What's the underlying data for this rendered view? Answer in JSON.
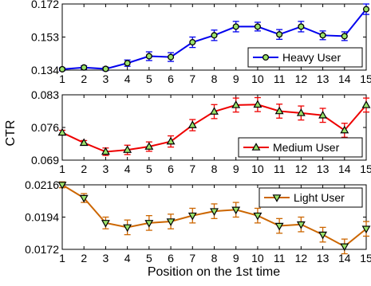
{
  "figure": {
    "ylabel": "CTR",
    "xlabel": "Position on the 1st time"
  },
  "chart_data": [
    {
      "type": "line",
      "x": [
        1,
        2,
        3,
        4,
        5,
        6,
        7,
        8,
        9,
        10,
        11,
        12,
        13,
        14,
        15
      ],
      "xlim": [
        1,
        15
      ],
      "ylim": [
        0.134,
        0.172
      ],
      "yticks": [
        0.134,
        0.153,
        0.172
      ],
      "ytick_labels": [
        "0.134",
        "0.153",
        "0.172"
      ],
      "xtick_labels": [
        "1",
        "2",
        "3",
        "4",
        "5",
        "6",
        "7",
        "8",
        "9",
        "10",
        "11",
        "12",
        "13",
        "14",
        "15"
      ],
      "legend_position": "bottom-right",
      "series": [
        {
          "name": "Heavy User",
          "color": "#0000ee",
          "marker": "circle",
          "marker_fill": "#9be36b",
          "values": [
            0.1345,
            0.1355,
            0.1347,
            0.138,
            0.142,
            0.1415,
            0.15,
            0.154,
            0.159,
            0.159,
            0.1545,
            0.159,
            0.154,
            0.1535,
            0.169
          ],
          "errors": [
            0.0008,
            0.001,
            0.001,
            0.0018,
            0.0025,
            0.0025,
            0.003,
            0.003,
            0.003,
            0.0025,
            0.0028,
            0.003,
            0.0025,
            0.0025,
            0.003
          ]
        }
      ]
    },
    {
      "type": "line",
      "x": [
        1,
        2,
        3,
        4,
        5,
        6,
        7,
        8,
        9,
        10,
        11,
        12,
        13,
        14,
        15
      ],
      "xlim": [
        1,
        15
      ],
      "ylim": [
        0.069,
        0.083
      ],
      "yticks": [
        0.069,
        0.076,
        0.083
      ],
      "ytick_labels": [
        "0.069",
        "0.076",
        "0.083"
      ],
      "xtick_labels": [
        "1",
        "2",
        "3",
        "4",
        "5",
        "6",
        "7",
        "8",
        "9",
        "10",
        "11",
        "12",
        "13",
        "14",
        "15"
      ],
      "legend_position": "bottom-right",
      "series": [
        {
          "name": "Medium User",
          "color": "#ee0000",
          "marker": "triangle-up",
          "marker_fill": "#9be36b",
          "values": [
            0.0749,
            0.0727,
            0.0708,
            0.0712,
            0.0719,
            0.073,
            0.0765,
            0.0794,
            0.0808,
            0.0809,
            0.0795,
            0.0791,
            0.0786,
            0.0754,
            0.0808
          ],
          "errors": [
            0.0005,
            0.0005,
            0.0008,
            0.001,
            0.001,
            0.0012,
            0.0012,
            0.0015,
            0.0015,
            0.0015,
            0.0015,
            0.0015,
            0.0015,
            0.0015,
            0.0015
          ]
        }
      ]
    },
    {
      "type": "line",
      "x": [
        1,
        2,
        3,
        4,
        5,
        6,
        7,
        8,
        9,
        10,
        11,
        12,
        13,
        14,
        15
      ],
      "xlim": [
        1,
        15
      ],
      "ylim": [
        0.0172,
        0.0216
      ],
      "yticks": [
        0.0172,
        0.0194,
        0.0216
      ],
      "ytick_labels": [
        "0.0172",
        "0.0194",
        "0.0216"
      ],
      "xtick_labels": [
        "1",
        "2",
        "3",
        "4",
        "5",
        "6",
        "7",
        "8",
        "9",
        "10",
        "11",
        "12",
        "13",
        "14",
        "15"
      ],
      "legend_position": "top-right",
      "series": [
        {
          "name": "Light User",
          "color": "#cc6600",
          "marker": "triangle-down",
          "marker_fill": "#9be36b",
          "values": [
            0.0216,
            0.0207,
            0.019,
            0.0187,
            0.019,
            0.0191,
            0.0195,
            0.0198,
            0.0199,
            0.0195,
            0.0188,
            0.0189,
            0.0182,
            0.0174,
            0.0186
          ],
          "errors": [
            0.0002,
            0.0003,
            0.0004,
            0.0005,
            0.0005,
            0.0005,
            0.0005,
            0.0005,
            0.0005,
            0.0005,
            0.0005,
            0.0005,
            0.0005,
            0.0005,
            0.0005
          ]
        }
      ]
    }
  ]
}
